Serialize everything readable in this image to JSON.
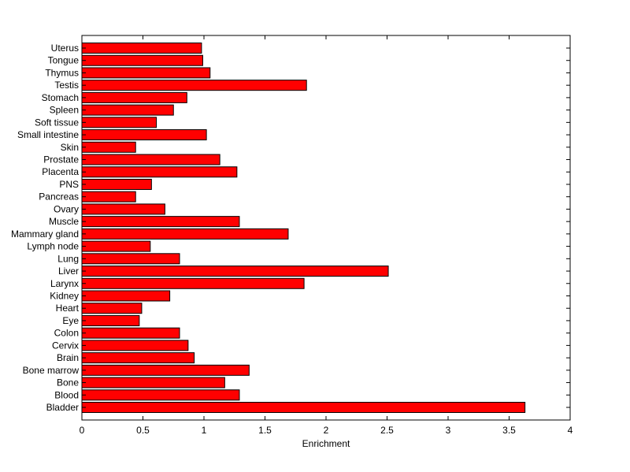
{
  "chart_data": {
    "type": "bar",
    "orientation": "horizontal",
    "categories": [
      "Bladder",
      "Blood",
      "Bone",
      "Bone marrow",
      "Brain",
      "Cervix",
      "Colon",
      "Eye",
      "Heart",
      "Kidney",
      "Larynx",
      "Liver",
      "Lung",
      "Lymph node",
      "Mammary gland",
      "Muscle",
      "Ovary",
      "Pancreas",
      "PNS",
      "Placenta",
      "Prostate",
      "Skin",
      "Small intestine",
      "Soft tissue",
      "Spleen",
      "Stomach",
      "Testis",
      "Thymus",
      "Tongue",
      "Uterus"
    ],
    "values": [
      3.63,
      1.29,
      1.17,
      1.37,
      0.92,
      0.87,
      0.8,
      0.47,
      0.49,
      0.72,
      1.82,
      2.51,
      0.8,
      0.56,
      1.69,
      1.29,
      0.68,
      0.44,
      0.57,
      1.27,
      1.13,
      0.44,
      1.02,
      0.61,
      0.75,
      0.86,
      1.84,
      1.05,
      0.99,
      0.98
    ],
    "xlabel": "Enrichment",
    "xlim": [
      0,
      4
    ],
    "xticks": [
      "0",
      "0.5",
      "1",
      "1.5",
      "2",
      "2.5",
      "3",
      "3.5",
      "4"
    ],
    "grid": false,
    "bar_color": "#ff0000",
    "bar_edge_color": "#000000"
  }
}
